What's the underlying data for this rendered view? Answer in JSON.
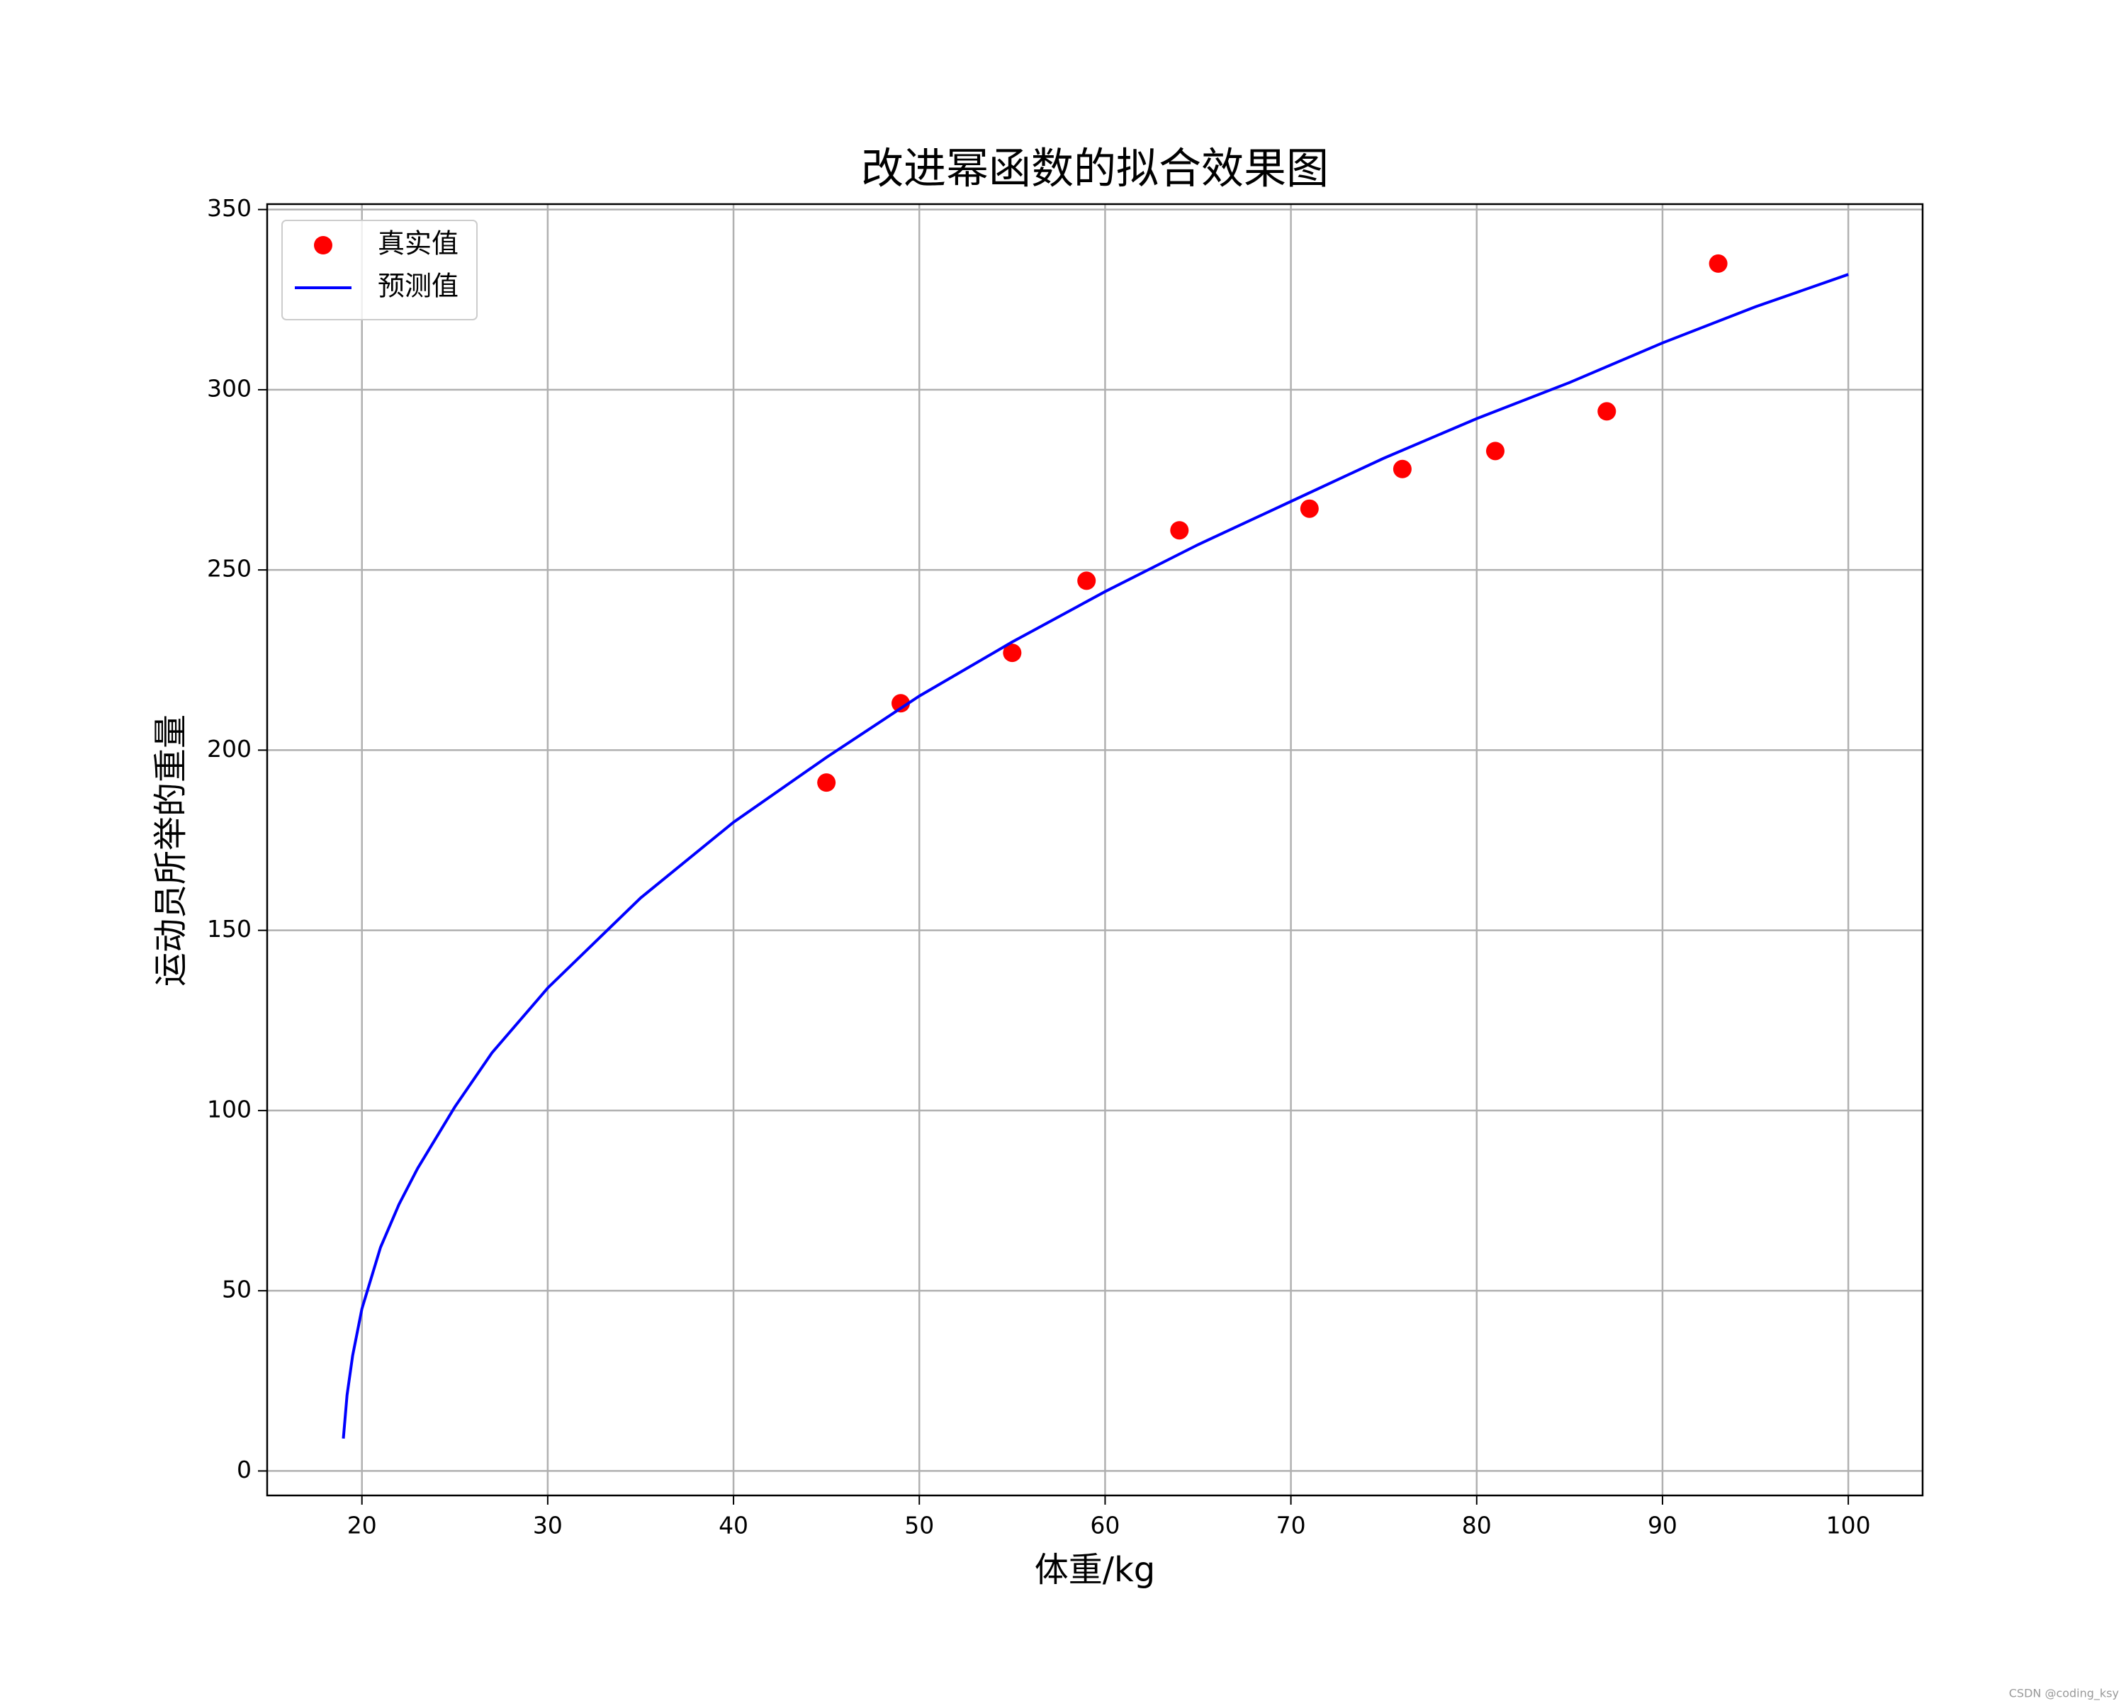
{
  "chart_data": {
    "type": "scatter",
    "title": "改进幂函数的拟合效果图",
    "xlabel": "体重/kg",
    "ylabel": "运动员所举的重量",
    "xlim": [
      14.9,
      104
    ],
    "ylim": [
      -6.8,
      351.5
    ],
    "xticks": [
      20,
      30,
      40,
      50,
      60,
      70,
      80,
      90,
      100
    ],
    "yticks": [
      0,
      50,
      100,
      150,
      200,
      250,
      300,
      350
    ],
    "grid": true,
    "legend": "upper left",
    "series": [
      {
        "name": "真实值",
        "color": "#ff0000",
        "mode": "markers",
        "x": [
          45,
          49,
          55,
          59,
          64,
          71,
          76,
          81,
          87,
          93
        ],
        "values": [
          191,
          213,
          227,
          247,
          261,
          267,
          278,
          283,
          294,
          335
        ]
      },
      {
        "name": "预测值",
        "color": "#0000ff",
        "mode": "line",
        "x": [
          19,
          19.2,
          19.5,
          20,
          21,
          22,
          23,
          25,
          27,
          30,
          35,
          40,
          45,
          50,
          55,
          60,
          65,
          70,
          75,
          80,
          85,
          90,
          95,
          100
        ],
        "values": [
          9,
          21,
          32,
          45,
          62,
          74,
          84,
          101,
          116,
          134,
          159,
          180,
          198,
          215,
          230,
          244,
          257,
          269,
          281,
          292,
          302,
          313,
          323,
          332
        ]
      }
    ]
  },
  "watermark": "CSDN @coding_ksy"
}
